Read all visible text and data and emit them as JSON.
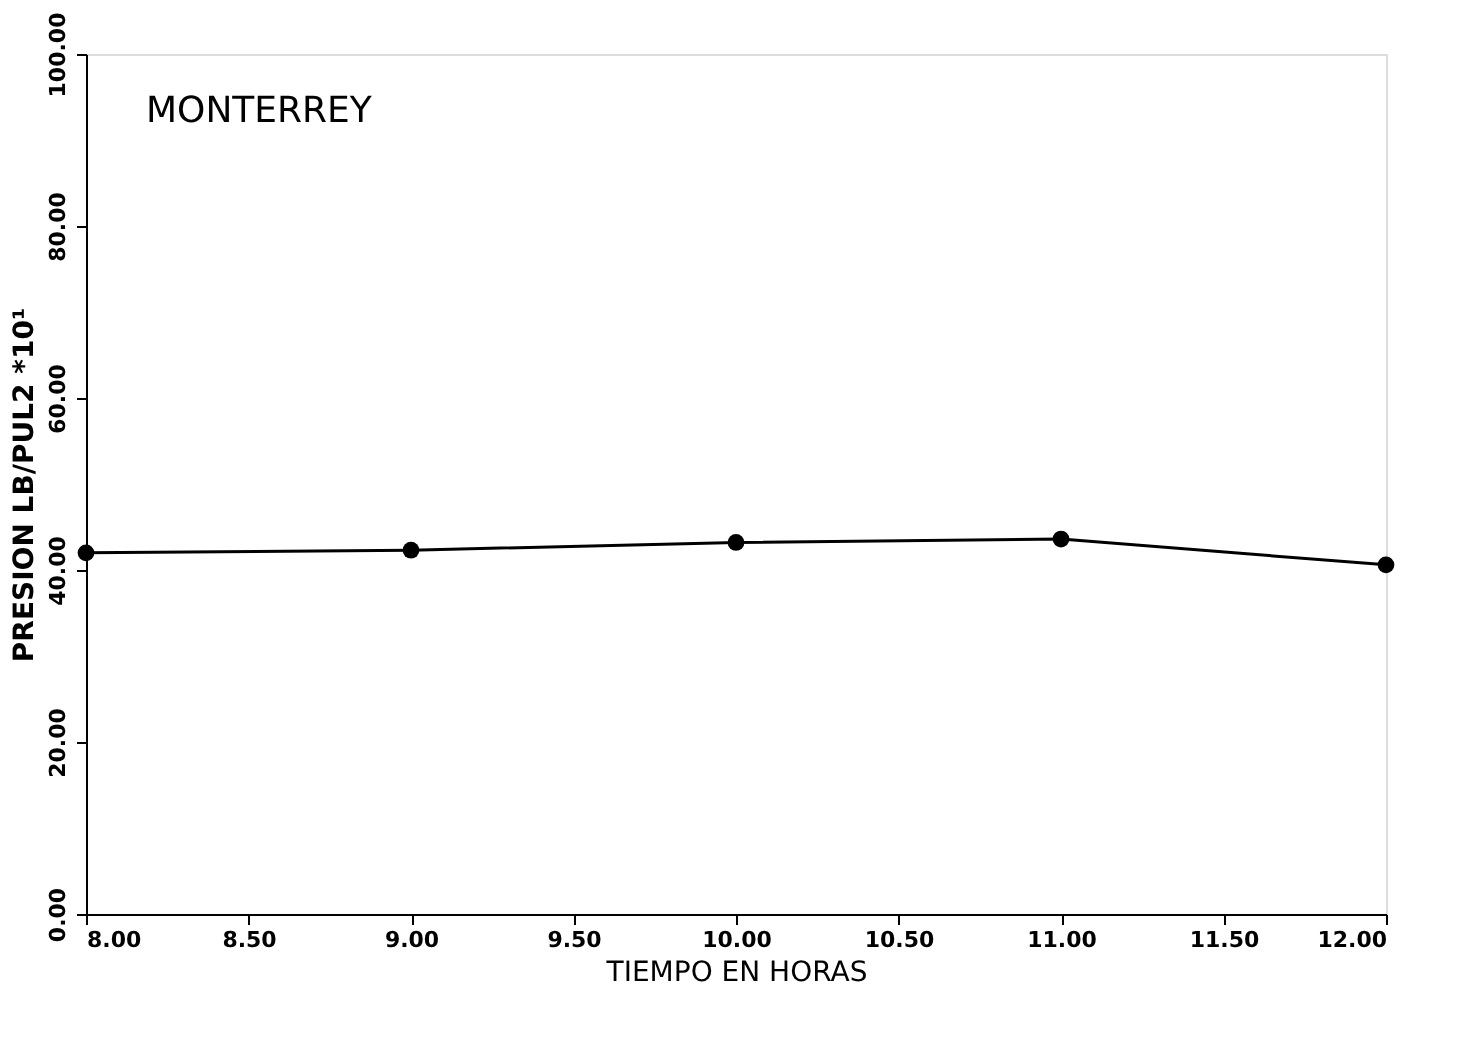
{
  "chart_data": {
    "type": "line",
    "title": "MONTERREY",
    "xlabel": "TIEMPO EN HORAS",
    "ylabel": "PRESION LB/PUL2 *10¹",
    "x": [
      8,
      9,
      10,
      11,
      12
    ],
    "series": [
      {
        "color": "#000000",
        "values": [
          42.0,
          42.3,
          43.2,
          43.6,
          40.6
        ]
      }
    ],
    "xlim": [
      8,
      12
    ],
    "ylim": [
      0,
      100
    ],
    "xticks": [
      {
        "value": 8,
        "label": "8.00"
      },
      {
        "value": 8.5,
        "label": "8.50"
      },
      {
        "value": 9,
        "label": "9.00"
      },
      {
        "value": 9.5,
        "label": "9.50"
      },
      {
        "value": 10,
        "label": "10.00"
      },
      {
        "value": 10.5,
        "label": "10.50"
      },
      {
        "value": 11,
        "label": "11.00"
      },
      {
        "value": 11.5,
        "label": "11.50"
      },
      {
        "value": 12,
        "label": "12.00"
      }
    ],
    "yticks": [
      {
        "value": 0,
        "label": "0.00"
      },
      {
        "value": 20,
        "label": "20.00"
      },
      {
        "value": 40,
        "label": "40.00"
      },
      {
        "value": 60,
        "label": "60.00"
      },
      {
        "value": 80,
        "label": "80.00"
      },
      {
        "value": 100,
        "label": "100.00"
      }
    ],
    "marker": "circle",
    "line_style": "solid",
    "grid": false
  }
}
